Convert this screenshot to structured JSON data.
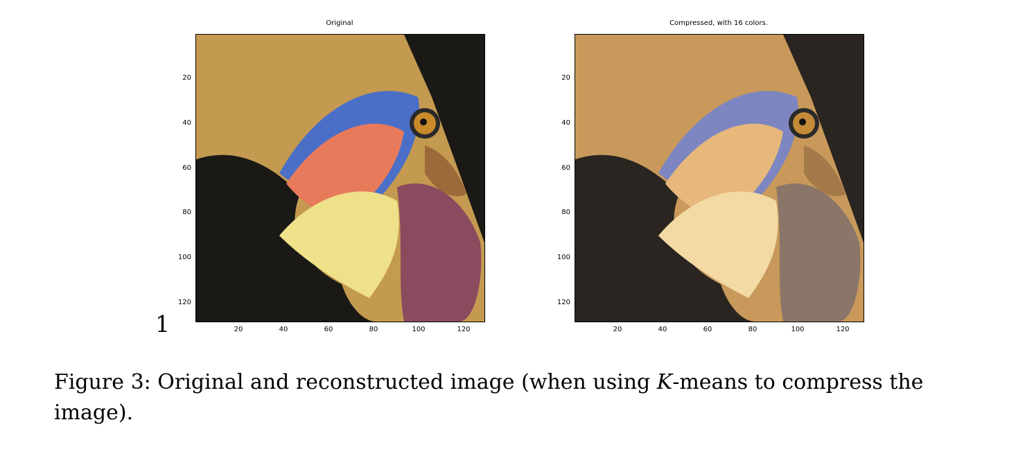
{
  "figure": {
    "page_number": "1",
    "caption": {
      "prefix": "Figure 3:",
      "before_k": " Original and reconstructed image (when using ",
      "k": "K",
      "after_k": "-means to compress the image)."
    }
  },
  "panels": [
    {
      "title": "Original",
      "x_ticks": [
        "20",
        "40",
        "60",
        "80",
        "100",
        "120"
      ],
      "y_ticks": [
        "20",
        "40",
        "60",
        "80",
        "100",
        "120"
      ],
      "palette": {
        "bg": "#c49a50",
        "dark": "#1a1916",
        "beak": "#efe08a",
        "pink": "#e87a5c",
        "blue": "#4b6fc7",
        "eye": "#c88a2a",
        "wattle": "#8a4b5e",
        "neck": "#9a6a3a"
      }
    },
    {
      "title": "Compressed, with 16 colors.",
      "x_ticks": [
        "20",
        "40",
        "60",
        "80",
        "100",
        "120"
      ],
      "y_ticks": [
        "20",
        "40",
        "60",
        "80",
        "100",
        "120"
      ],
      "palette": {
        "bg": "#c8995a",
        "dark": "#2a2520",
        "beak": "#f3d9a4",
        "pink": "#e6b87c",
        "blue": "#7d86c0",
        "eye": "#c48a38",
        "wattle": "#8a7568",
        "neck": "#a47a4a"
      }
    }
  ]
}
